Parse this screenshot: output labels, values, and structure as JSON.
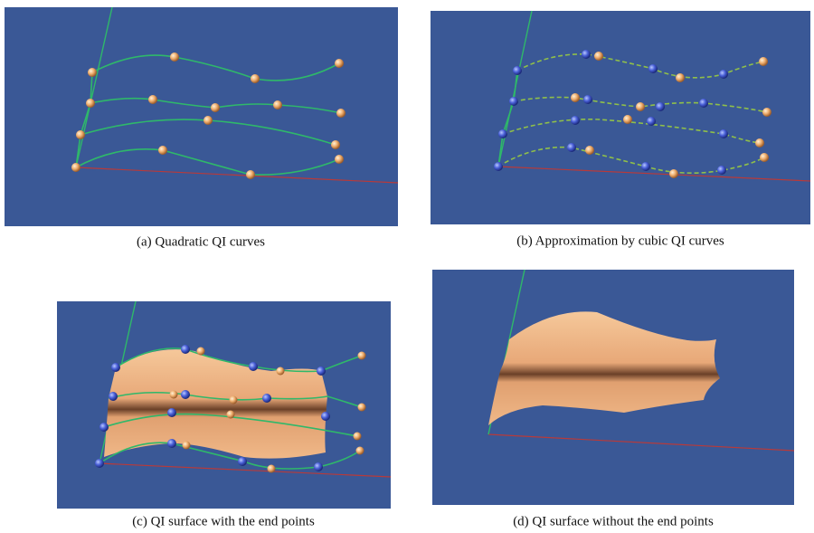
{
  "figure": {
    "panels": [
      {
        "caption": "(a) Quadratic QI curves"
      },
      {
        "caption": "(b) Approximation by cubic QI curves"
      },
      {
        "caption": "(c) QI surface with the end points"
      },
      {
        "caption": "(d) QI surface without the end points"
      }
    ]
  }
}
